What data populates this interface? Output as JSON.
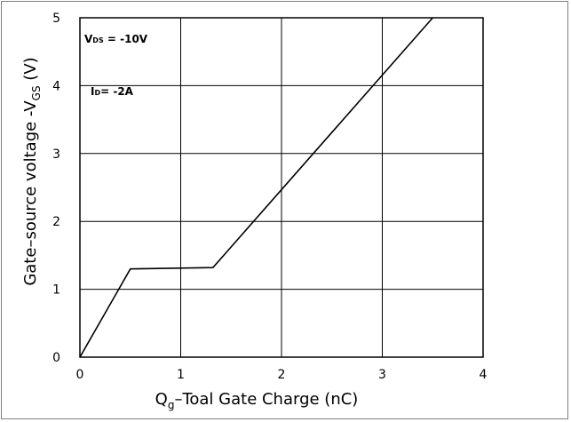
{
  "chart_data": {
    "type": "line",
    "title": "",
    "xlabel": {
      "prefix": "Q",
      "sub": "g",
      "text": "–Toal Gate Charge  (nC)"
    },
    "ylabel": {
      "text": "Gate–source voltage -V",
      "sub": "GS",
      "suffix": " (V)"
    },
    "xlim": [
      0,
      4
    ],
    "ylim": [
      0,
      5
    ],
    "xticks": [
      "0",
      "1",
      "2",
      "3",
      "4"
    ],
    "yticks": [
      "0",
      "1",
      "2",
      "3",
      "4",
      "5"
    ],
    "grid": true,
    "series": [
      {
        "x": [
          0,
          0.5,
          1.32,
          3.5
        ],
        "y": [
          0,
          1.3,
          1.32,
          5.0
        ]
      }
    ],
    "annotations": [
      {
        "main": "V",
        "sub": "DS",
        "rest": " = -10V"
      },
      {
        "main": "I",
        "sub": "D",
        "rest": "= -2A"
      }
    ],
    "colors": {
      "line": "#000000",
      "grid": "#000000",
      "frame": "#7f7f7f"
    }
  }
}
